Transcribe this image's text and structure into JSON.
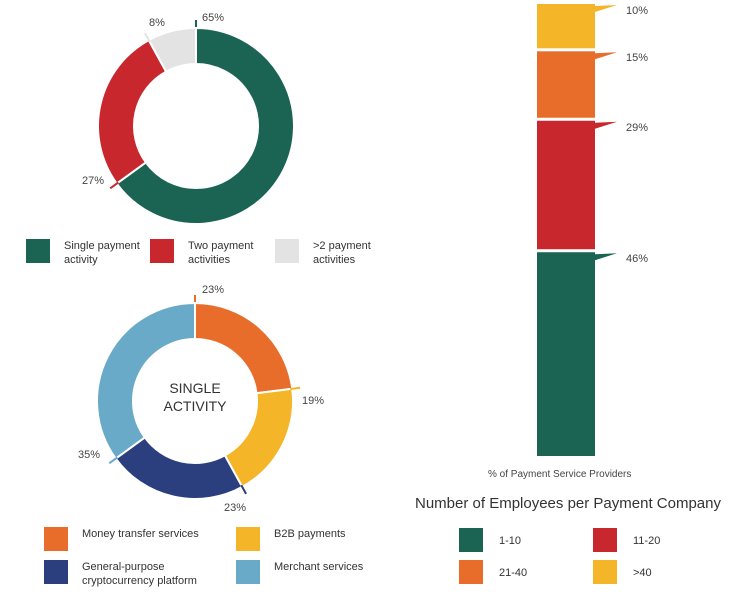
{
  "chart_data": [
    {
      "type": "pie",
      "variant": "donut",
      "title": "",
      "categories": [
        "Single payment activity",
        "Two payment activities",
        ">2 payment activities"
      ],
      "values": [
        65,
        27,
        8
      ],
      "value_labels": [
        "65%",
        "27%",
        "8%"
      ],
      "colors": [
        "#1b6454",
        "#c8282d",
        "#e3e3e3"
      ],
      "legend": "bottom"
    },
    {
      "type": "pie",
      "variant": "donut",
      "title": "",
      "center_label": "SINGLE\nACTIVITY",
      "categories": [
        "Money transfer services",
        "B2B payments",
        "General-purpose cryptocurrency platform",
        "Merchant services"
      ],
      "values": [
        23,
        19,
        23,
        35
      ],
      "value_labels": [
        "23%",
        "19%",
        "23%",
        "35%"
      ],
      "colors": [
        "#e86d2a",
        "#f5b529",
        "#2b3e7e",
        "#6aaac9"
      ],
      "legend": "bottom"
    },
    {
      "type": "bar",
      "variant": "stacked",
      "title": "Number of Employees per Payment Company",
      "xlabel": "% of Payment Service Providers",
      "ylabel": "",
      "categories": [
        "% of Payment Service Providers"
      ],
      "series": [
        {
          "name": "1-10",
          "values": [
            46
          ],
          "label": "46%",
          "color": "#1b6454"
        },
        {
          "name": "11-20",
          "values": [
            29
          ],
          "label": "29%",
          "color": "#c8282d"
        },
        {
          "name": "21-40",
          "values": [
            15
          ],
          "label": "15%",
          "color": "#e86d2a"
        },
        {
          "name": ">40",
          "values": [
            10
          ],
          "label": "10%",
          "color": "#f5b529"
        }
      ],
      "ylim": [
        0,
        100
      ],
      "legend": "bottom"
    }
  ],
  "legend1": [
    {
      "text": "Single payment\nactivity",
      "color": "#1b6454"
    },
    {
      "text": "Two payment\nactivities",
      "color": "#c8282d"
    },
    {
      "text": ">2 payment\nactivities",
      "color": "#e3e3e3"
    }
  ],
  "legend2": [
    {
      "text": "Money transfer services",
      "color": "#e86d2a"
    },
    {
      "text": "B2B payments",
      "color": "#f5b529"
    },
    {
      "text": "General-purpose\ncryptocurrency platform",
      "color": "#2b3e7e"
    },
    {
      "text": "Merchant services",
      "color": "#6aaac9"
    }
  ]
}
